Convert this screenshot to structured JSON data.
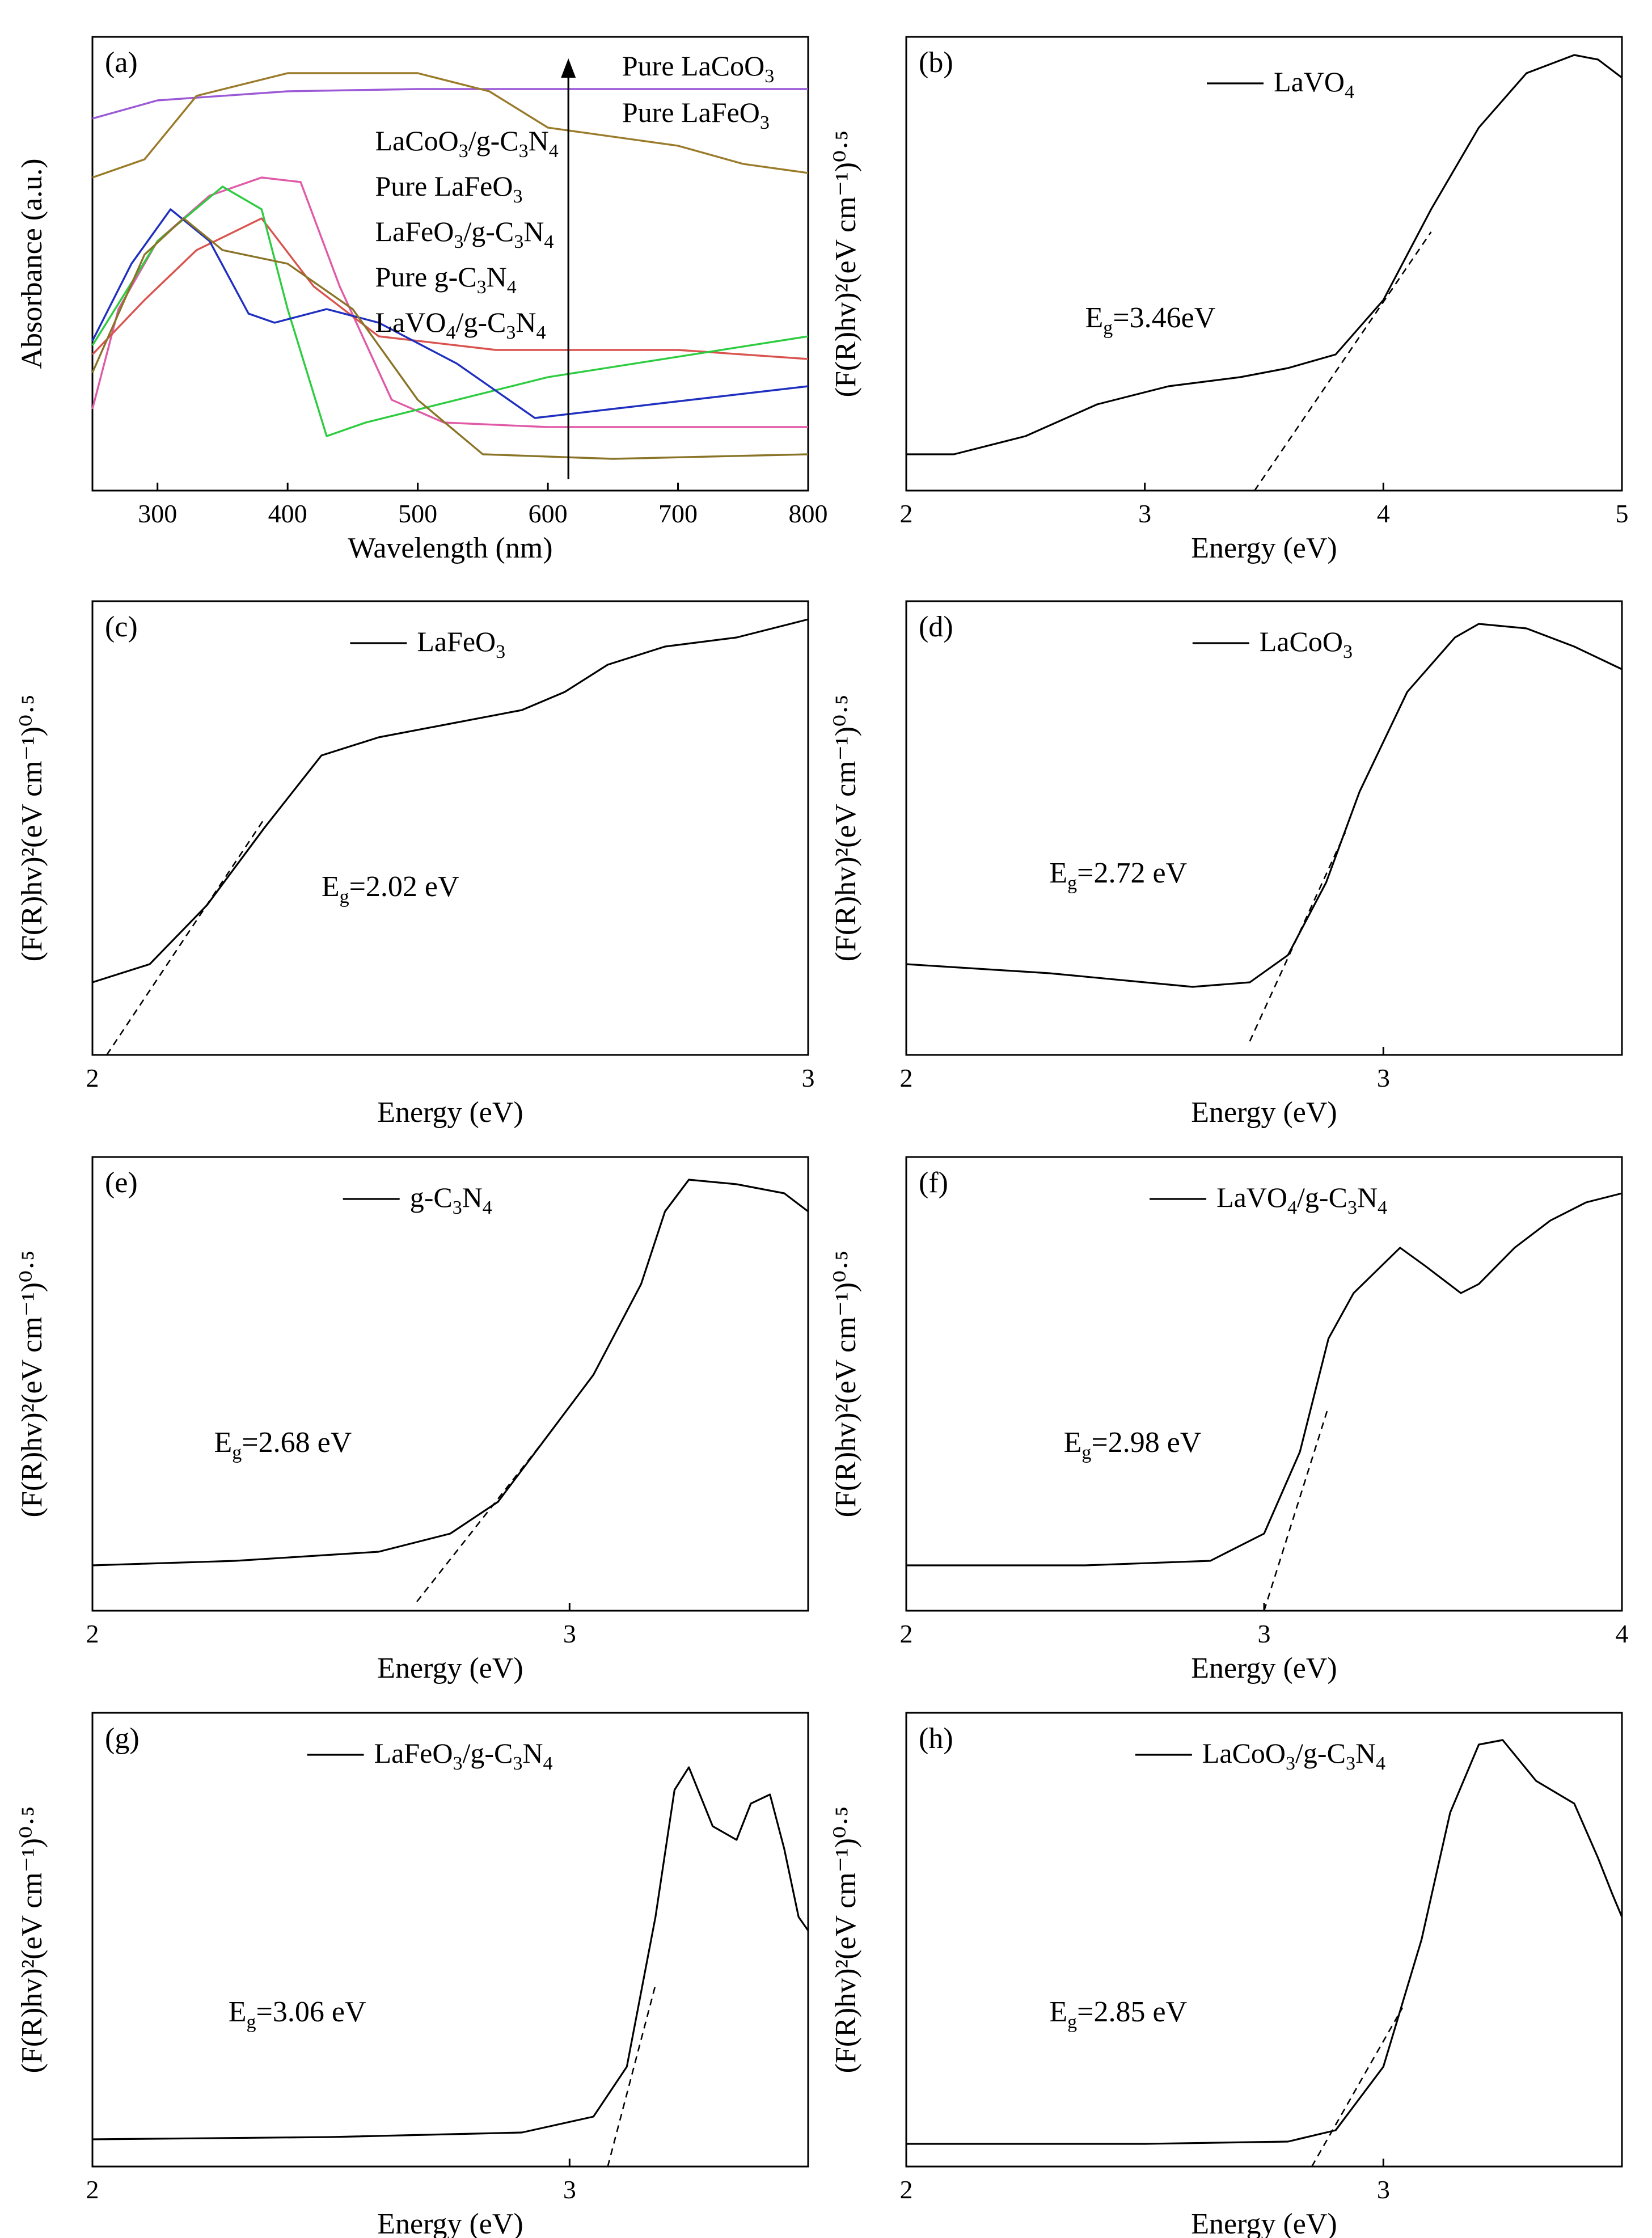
{
  "chart_data": [
    {
      "panel": "(a)",
      "type": "line",
      "xlabel": "Wavelength (nm)",
      "ylabel": "Absorbance (a.u.)",
      "xlim": [
        250,
        800
      ],
      "xticks": [
        "300",
        "400",
        "500",
        "600",
        "700",
        "800"
      ],
      "arrow_labels": [
        "Pure LaCoO3",
        "Pure LaFeO3"
      ],
      "legend_labels": [
        "LaCoO3/g-C3N4",
        "Pure LaFeO3",
        "LaFeO3/g-C3N4",
        "Pure g-C3N4",
        "LaVO4/g-C3N4"
      ],
      "series": [
        {
          "color": "#9b59d6",
          "points": [
            [
              250,
              0.82
            ],
            [
              300,
              0.86
            ],
            [
              400,
              0.88
            ],
            [
              500,
              0.885
            ],
            [
              600,
              0.885
            ],
            [
              800,
              0.885
            ]
          ]
        },
        {
          "color": "#9a7b2a",
          "points": [
            [
              250,
              0.69
            ],
            [
              290,
              0.73
            ],
            [
              330,
              0.87
            ],
            [
              400,
              0.92
            ],
            [
              500,
              0.92
            ],
            [
              555,
              0.88
            ],
            [
              600,
              0.8
            ],
            [
              700,
              0.76
            ],
            [
              750,
              0.72
            ],
            [
              800,
              0.7
            ]
          ]
        },
        {
          "color": "#e05aa8",
          "points": [
            [
              250,
              0.18
            ],
            [
              270,
              0.4
            ],
            [
              300,
              0.55
            ],
            [
              340,
              0.65
            ],
            [
              380,
              0.69
            ],
            [
              410,
              0.68
            ],
            [
              440,
              0.45
            ],
            [
              480,
              0.2
            ],
            [
              520,
              0.15
            ],
            [
              600,
              0.14
            ],
            [
              800,
              0.14
            ]
          ]
        },
        {
          "color": "#d9534f",
          "points": [
            [
              250,
              0.3
            ],
            [
              290,
              0.42
            ],
            [
              330,
              0.53
            ],
            [
              380,
              0.6
            ],
            [
              420,
              0.45
            ],
            [
              470,
              0.34
            ],
            [
              560,
              0.31
            ],
            [
              650,
              0.31
            ],
            [
              700,
              0.31
            ],
            [
              800,
              0.29
            ]
          ]
        },
        {
          "color": "#2ecc40",
          "points": [
            [
              250,
              0.32
            ],
            [
              300,
              0.55
            ],
            [
              350,
              0.67
            ],
            [
              380,
              0.62
            ],
            [
              400,
              0.4
            ],
            [
              430,
              0.12
            ],
            [
              460,
              0.15
            ],
            [
              600,
              0.25
            ],
            [
              800,
              0.34
            ]
          ]
        },
        {
          "color": "#1f2fbf",
          "points": [
            [
              250,
              0.33
            ],
            [
              280,
              0.5
            ],
            [
              310,
              0.62
            ],
            [
              340,
              0.55
            ],
            [
              370,
              0.39
            ],
            [
              390,
              0.37
            ],
            [
              430,
              0.4
            ],
            [
              470,
              0.37
            ],
            [
              530,
              0.28
            ],
            [
              590,
              0.16
            ],
            [
              650,
              0.18
            ],
            [
              800,
              0.23
            ]
          ]
        },
        {
          "color": "#8a7428",
          "points": [
            [
              250,
              0.26
            ],
            [
              290,
              0.52
            ],
            [
              320,
              0.6
            ],
            [
              350,
              0.53
            ],
            [
              400,
              0.5
            ],
            [
              450,
              0.4
            ],
            [
              500,
              0.2
            ],
            [
              550,
              0.08
            ],
            [
              650,
              0.07
            ],
            [
              800,
              0.08
            ]
          ]
        }
      ]
    },
    {
      "panel": "(b)",
      "type": "line",
      "xlabel": "Energy (eV)",
      "ylabel": "(F(R)hv)²(eV cm⁻¹)⁰·⁵",
      "xlim": [
        2,
        5
      ],
      "xticks": [
        "2",
        "3",
        "4",
        "5"
      ],
      "legend": "LaVO4",
      "eg_text": "3.46eV",
      "fit": [
        [
          3.46,
          0.0
        ],
        [
          4.2,
          0.57
        ]
      ],
      "points": [
        [
          2.0,
          0.08
        ],
        [
          2.2,
          0.08
        ],
        [
          2.5,
          0.12
        ],
        [
          2.8,
          0.19
        ],
        [
          3.1,
          0.23
        ],
        [
          3.4,
          0.25
        ],
        [
          3.6,
          0.27
        ],
        [
          3.8,
          0.3
        ],
        [
          4.0,
          0.42
        ],
        [
          4.2,
          0.62
        ],
        [
          4.4,
          0.8
        ],
        [
          4.6,
          0.92
        ],
        [
          4.8,
          0.96
        ],
        [
          4.9,
          0.95
        ],
        [
          5.0,
          0.91
        ]
      ]
    },
    {
      "panel": "(c)",
      "type": "line",
      "xlabel": "Energy (eV)",
      "ylabel": "(F(R)hv)²(eV cm⁻¹)⁰·⁵",
      "xlim": [
        2,
        3
      ],
      "xticks": [
        "2",
        "3"
      ],
      "legend": "LaFeO3",
      "eg_text": "2.02 eV",
      "fit": [
        [
          2.02,
          0.0
        ],
        [
          2.24,
          0.52
        ]
      ],
      "points": [
        [
          2.0,
          0.16
        ],
        [
          2.08,
          0.2
        ],
        [
          2.16,
          0.33
        ],
        [
          2.24,
          0.5
        ],
        [
          2.32,
          0.66
        ],
        [
          2.4,
          0.7
        ],
        [
          2.5,
          0.73
        ],
        [
          2.6,
          0.76
        ],
        [
          2.66,
          0.8
        ],
        [
          2.72,
          0.86
        ],
        [
          2.8,
          0.9
        ],
        [
          2.9,
          0.92
        ],
        [
          3.0,
          0.96
        ]
      ]
    },
    {
      "panel": "(d)",
      "type": "line",
      "xlabel": "Energy (eV)",
      "ylabel": "(F(R)hv)²(eV cm⁻¹)⁰·⁵",
      "xlim": [
        2,
        3.5
      ],
      "xticks": [
        "2",
        "3"
      ],
      "legend": "LaCoO3",
      "eg_text": "2.72 eV",
      "fit": [
        [
          2.72,
          0.03
        ],
        [
          2.92,
          0.49
        ]
      ],
      "points": [
        [
          2.0,
          0.2
        ],
        [
          2.3,
          0.18
        ],
        [
          2.6,
          0.15
        ],
        [
          2.72,
          0.16
        ],
        [
          2.8,
          0.22
        ],
        [
          2.88,
          0.38
        ],
        [
          2.95,
          0.58
        ],
        [
          3.05,
          0.8
        ],
        [
          3.15,
          0.92
        ],
        [
          3.2,
          0.95
        ],
        [
          3.3,
          0.94
        ],
        [
          3.4,
          0.9
        ],
        [
          3.5,
          0.85
        ]
      ]
    },
    {
      "panel": "(e)",
      "type": "line",
      "xlabel": "Energy (eV)",
      "ylabel": "(F(R)hv)²(eV cm⁻¹)⁰·⁵",
      "xlim": [
        2,
        3.5
      ],
      "xticks": [
        "2",
        "3"
      ],
      "legend": "g-C3N4",
      "eg_text": "2.68 eV",
      "fit": [
        [
          2.68,
          0.02
        ],
        [
          2.95,
          0.38
        ]
      ],
      "points": [
        [
          2.0,
          0.1
        ],
        [
          2.3,
          0.11
        ],
        [
          2.6,
          0.13
        ],
        [
          2.75,
          0.17
        ],
        [
          2.85,
          0.24
        ],
        [
          2.95,
          0.38
        ],
        [
          3.05,
          0.52
        ],
        [
          3.15,
          0.72
        ],
        [
          3.2,
          0.88
        ],
        [
          3.25,
          0.95
        ],
        [
          3.35,
          0.94
        ],
        [
          3.45,
          0.92
        ],
        [
          3.5,
          0.88
        ]
      ]
    },
    {
      "panel": "(f)",
      "type": "line",
      "xlabel": "Energy (eV)",
      "ylabel": "(F(R)hv)²(eV cm⁻¹)⁰·⁵",
      "xlim": [
        2,
        4
      ],
      "xticks": [
        "2",
        "3",
        "4"
      ],
      "legend": "LaVO4/g-C3N4",
      "eg_text": "2.98 eV",
      "fit": [
        [
          3.0,
          0.0
        ],
        [
          3.18,
          0.45
        ]
      ],
      "points": [
        [
          2.0,
          0.1
        ],
        [
          2.5,
          0.1
        ],
        [
          2.85,
          0.11
        ],
        [
          3.0,
          0.17
        ],
        [
          3.1,
          0.35
        ],
        [
          3.18,
          0.6
        ],
        [
          3.25,
          0.7
        ],
        [
          3.38,
          0.8
        ],
        [
          3.45,
          0.76
        ],
        [
          3.55,
          0.7
        ],
        [
          3.6,
          0.72
        ],
        [
          3.7,
          0.8
        ],
        [
          3.8,
          0.86
        ],
        [
          3.9,
          0.9
        ],
        [
          4.0,
          0.92
        ]
      ]
    },
    {
      "panel": "(g)",
      "type": "line",
      "xlabel": "Energy (eV)",
      "ylabel": "(F(R)hv)²(eV cm⁻¹)⁰·⁵",
      "xlim": [
        2,
        3.5
      ],
      "xticks": [
        "2",
        "3"
      ],
      "legend": "LaFeO3/g-C3N4",
      "eg_text": "3.06 eV",
      "fit": [
        [
          3.08,
          0.0
        ],
        [
          3.18,
          0.4
        ]
      ],
      "points": [
        [
          2.0,
          0.06
        ],
        [
          2.5,
          0.065
        ],
        [
          2.9,
          0.075
        ],
        [
          3.05,
          0.11
        ],
        [
          3.12,
          0.22
        ],
        [
          3.18,
          0.55
        ],
        [
          3.22,
          0.83
        ],
        [
          3.25,
          0.88
        ],
        [
          3.3,
          0.75
        ],
        [
          3.35,
          0.72
        ],
        [
          3.38,
          0.8
        ],
        [
          3.42,
          0.82
        ],
        [
          3.45,
          0.7
        ],
        [
          3.48,
          0.55
        ],
        [
          3.5,
          0.52
        ]
      ]
    },
    {
      "panel": "(h)",
      "type": "line",
      "xlabel": "Energy (eV)",
      "ylabel": "(F(R)hv)²(eV cm⁻¹)⁰·⁵",
      "xlim": [
        2,
        3.5
      ],
      "xticks": [
        "2",
        "3"
      ],
      "legend": "LaCoO3/g-C3N4",
      "eg_text": "2.85 eV",
      "fit": [
        [
          2.85,
          0.0
        ],
        [
          3.04,
          0.35
        ]
      ],
      "points": [
        [
          2.0,
          0.05
        ],
        [
          2.5,
          0.05
        ],
        [
          2.8,
          0.055
        ],
        [
          2.9,
          0.08
        ],
        [
          3.0,
          0.22
        ],
        [
          3.08,
          0.5
        ],
        [
          3.14,
          0.78
        ],
        [
          3.2,
          0.93
        ],
        [
          3.25,
          0.94
        ],
        [
          3.32,
          0.85
        ],
        [
          3.4,
          0.8
        ],
        [
          3.45,
          0.68
        ],
        [
          3.48,
          0.6
        ],
        [
          3.5,
          0.55
        ]
      ]
    }
  ]
}
